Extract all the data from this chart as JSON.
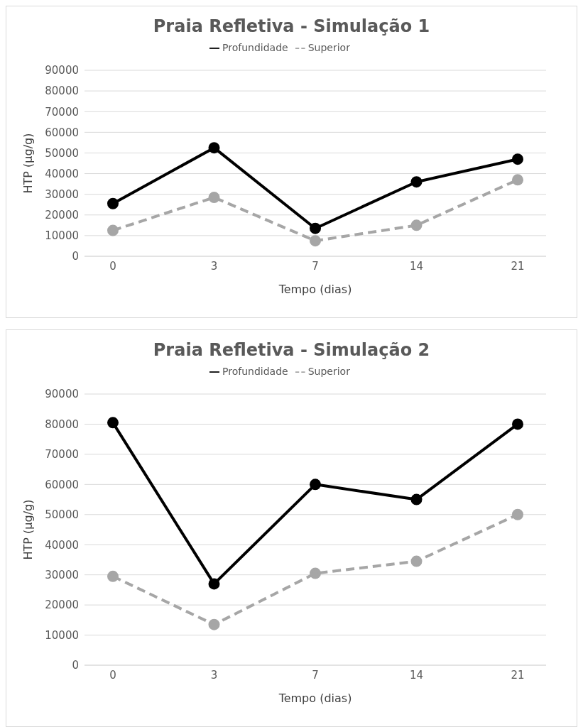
{
  "chart_data": [
    {
      "type": "line",
      "title": "Praia Refletiva - Simulação 1",
      "xlabel": "Tempo (dias)",
      "ylabel": "HTP (µg/g)",
      "categories": [
        "0",
        "3",
        "7",
        "14",
        "21"
      ],
      "ylim": [
        0,
        90000
      ],
      "yticks": [
        0,
        10000,
        20000,
        30000,
        40000,
        50000,
        60000,
        70000,
        80000,
        90000
      ],
      "grid": "y",
      "legend": "top",
      "marker": "circle",
      "series": [
        {
          "name": "Superior",
          "color": "#a6a6a6",
          "line_style": "dashed",
          "values": [
            12500,
            28500,
            7500,
            15000,
            37000
          ]
        },
        {
          "name": "Profundidade",
          "color": "#000000",
          "line_style": "solid",
          "values": [
            25500,
            52500,
            13500,
            36000,
            47000
          ]
        }
      ]
    },
    {
      "type": "line",
      "title": "Praia Refletiva - Simulação 2",
      "xlabel": "Tempo (dias)",
      "ylabel": "HTP (µg/g)",
      "categories": [
        "0",
        "3",
        "7",
        "14",
        "21"
      ],
      "ylim": [
        0,
        90000
      ],
      "yticks": [
        0,
        10000,
        20000,
        30000,
        40000,
        50000,
        60000,
        70000,
        80000,
        90000
      ],
      "grid": "y",
      "legend": "top",
      "marker": "circle",
      "series": [
        {
          "name": "Superior",
          "color": "#a6a6a6",
          "line_style": "dashed",
          "values": [
            29500,
            13500,
            30500,
            34500,
            50000
          ]
        },
        {
          "name": "Profundidade",
          "color": "#000000",
          "line_style": "solid",
          "values": [
            80500,
            27000,
            60000,
            55000,
            80000
          ]
        }
      ]
    }
  ]
}
